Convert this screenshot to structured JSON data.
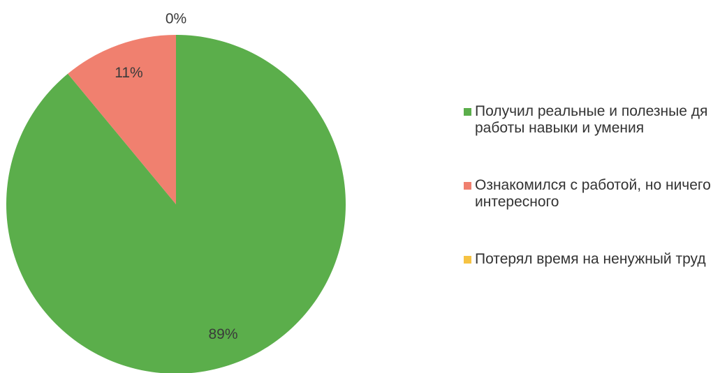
{
  "chart_data": {
    "type": "pie",
    "categories": [
      "Получил реальные и полезные дя работы навыки и умения",
      "Ознакомился с работой, но ничего интересного",
      "Потерял время на ненужный труд"
    ],
    "values": [
      89,
      11,
      0
    ],
    "value_labels": [
      "89%",
      "11%",
      "0%"
    ],
    "colors": [
      "#5bae4b",
      "#f0806f",
      "#f6c343"
    ],
    "legend": "right"
  }
}
